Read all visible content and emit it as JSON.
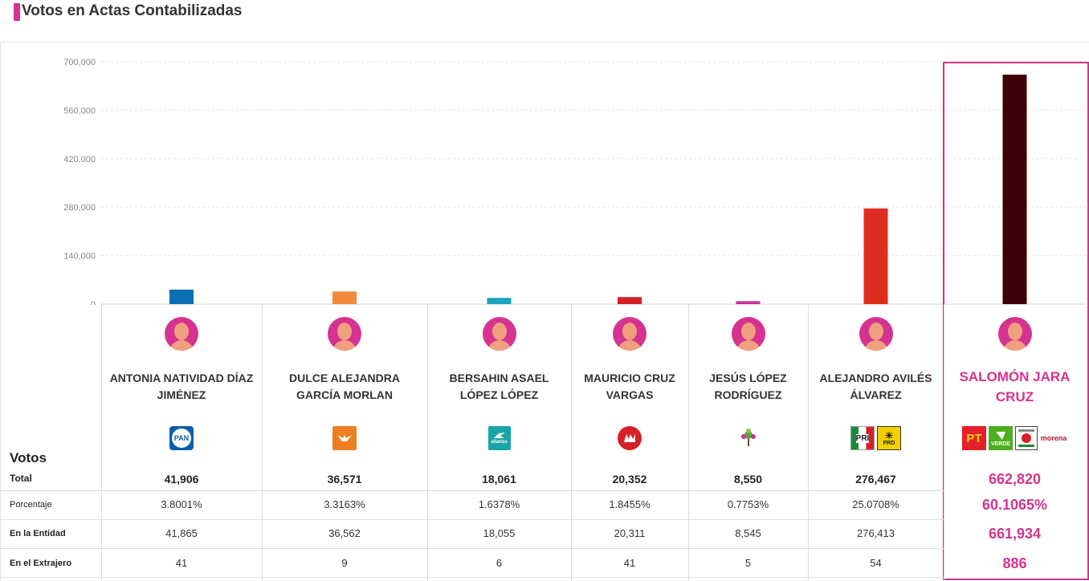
{
  "header": {
    "title": "Votos en Actas Contabilizadas",
    "accent_color": "#d5338f"
  },
  "chart_data": {
    "type": "bar",
    "ylim": [
      0,
      700000
    ],
    "yticks": [
      0,
      140000,
      280000,
      420000,
      560000,
      700000
    ],
    "ytick_labels": [
      "0",
      "140,000",
      "280,000",
      "420,000",
      "560,000",
      "700,000"
    ],
    "grid": true,
    "categories": [
      "ANTONIA NATIVIDAD DÍAZ JIMÉNEZ",
      "DULCE ALEJANDRA GARCÍA MORLAN",
      "BERSAHIN ASAEL LÓPEZ LÓPEZ",
      "MAURICIO CRUZ VARGAS",
      "JESÚS LÓPEZ RODRÍGUEZ",
      "ALEJANDRO AVILÉS ÁLVAREZ",
      "SALOMÓN JARA CRUZ"
    ],
    "values": [
      41906,
      36571,
      18061,
      20352,
      8550,
      276467,
      662820
    ],
    "colors": [
      "#0b6fb5",
      "#f0893a",
      "#1aa4c0",
      "#d62027",
      "#c73399",
      "#e02c1f",
      "#3e0008"
    ]
  },
  "candidates": [
    {
      "name": "ANTONIA NATIVIDAD DÍAZ JIMÉNEZ",
      "logos": [
        "PAN"
      ],
      "total": "41,906",
      "porcentaje": "3.8001%",
      "entidad": "41,865",
      "extranjero": "41"
    },
    {
      "name": "DULCE ALEJANDRA GARCÍA MORLAN",
      "logos": [
        "MC"
      ],
      "total": "36,571",
      "porcentaje": "3.3163%",
      "entidad": "36,562",
      "extranjero": "9"
    },
    {
      "name": "BERSAHIN ASAEL LÓPEZ LÓPEZ",
      "logos": [
        "alianza"
      ],
      "total": "18,061",
      "porcentaje": "1.6378%",
      "entidad": "18,055",
      "extranjero": "6"
    },
    {
      "name": "MAURICIO CRUZ VARGAS",
      "logos": [
        "UP"
      ],
      "total": "20,352",
      "porcentaje": "1.8455%",
      "entidad": "20,311",
      "extranjero": "41"
    },
    {
      "name": "JESÚS LÓPEZ RODRÍGUEZ",
      "logos": [
        "NA"
      ],
      "total": "8,550",
      "porcentaje": "0.7753%",
      "entidad": "8,545",
      "extranjero": "5"
    },
    {
      "name": "ALEJANDRO AVILÉS ÁLVAREZ",
      "logos": [
        "PRI",
        "PRD"
      ],
      "total": "276,467",
      "porcentaje": "25.0708%",
      "entidad": "276,413",
      "extranjero": "54"
    },
    {
      "name": "SALOMÓN JARA CRUZ",
      "logos": [
        "PT",
        "VERDE",
        "PUP",
        "morena"
      ],
      "total": "662,820",
      "porcentaje": "60.1065%",
      "entidad": "661,934",
      "extranjero": "886",
      "highlight": true
    }
  ],
  "table": {
    "section_label": "Votos",
    "row_total": "Total",
    "row_porcentaje": "Porcentaje",
    "row_entidad": "En la Entidad",
    "row_extranjero": "En el Extrajero"
  },
  "logo_texts": {
    "PAN": "PAN",
    "alianza": "alianza",
    "PT": "PT",
    "VERDE": "VERDE",
    "PRI": "PRI",
    "PRD": "PRD",
    "morena": "morena"
  }
}
